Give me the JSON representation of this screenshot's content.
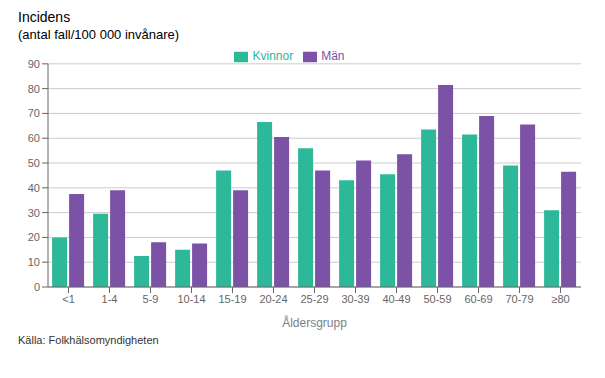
{
  "chart_data": {
    "type": "bar",
    "title": "Incidens",
    "subtitle": "(antal fall/100 000 invånare)",
    "xlabel": "Åldersgrupp",
    "source": "Källa: Folkhälsomyndigheten",
    "categories": [
      "<1",
      "1-4",
      "5-9",
      "10-14",
      "15-19",
      "20-24",
      "25-29",
      "30-39",
      "40-49",
      "50-59",
      "60-69",
      "70-79",
      "≥80"
    ],
    "series": [
      {
        "name": "Kvinnor",
        "color": "#2EB89A",
        "values": [
          20,
          29.5,
          12.5,
          15,
          47,
          66.5,
          56,
          43,
          45.5,
          63.5,
          61.5,
          49,
          31
        ]
      },
      {
        "name": "Män",
        "color": "#7B52A6",
        "values": [
          37.5,
          39,
          18,
          17.5,
          39,
          60.5,
          47,
          51,
          53.5,
          81.5,
          69,
          65.5,
          46.5
        ]
      }
    ],
    "ylim": [
      0,
      90
    ],
    "yticks": [
      0,
      10,
      20,
      30,
      40,
      50,
      60,
      70,
      80,
      90
    ],
    "grid": true,
    "legend": "top"
  }
}
